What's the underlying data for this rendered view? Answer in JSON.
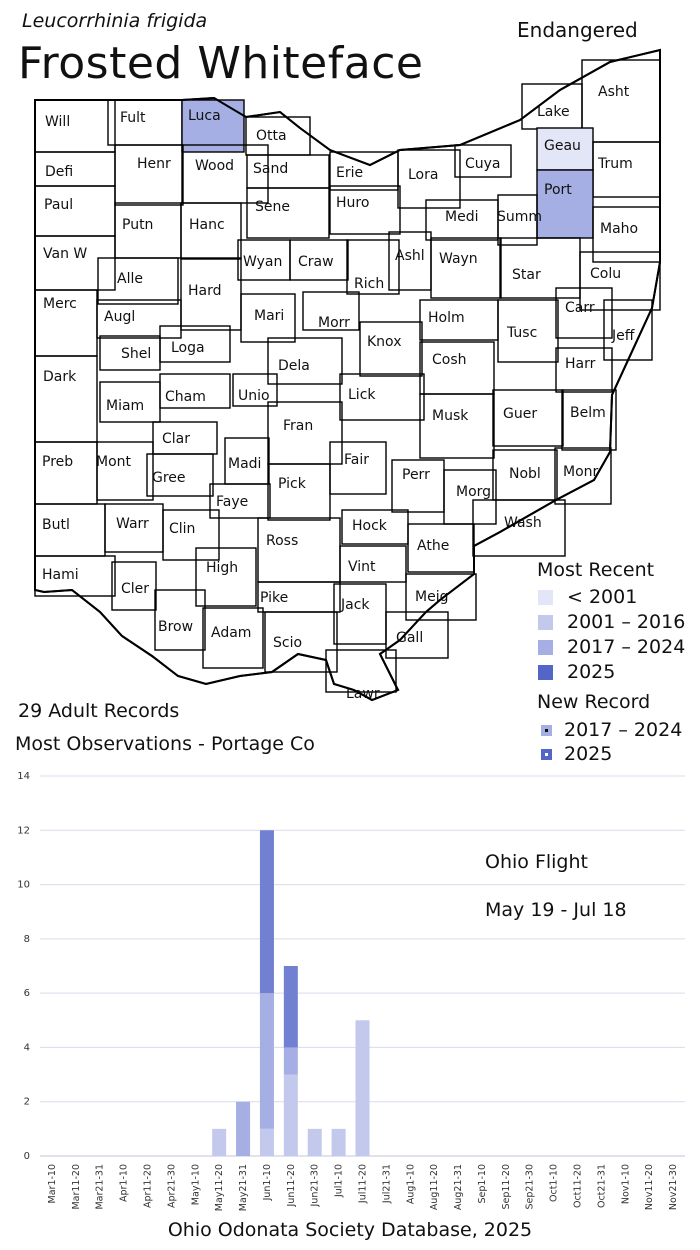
{
  "header": {
    "scientific_name": "Leucorrhinia frigida",
    "common_name": "Frosted Whiteface",
    "status": "Endangered"
  },
  "summary": {
    "records": "29 Adult Records",
    "most_observations": "Most Observations - Portage Co"
  },
  "legend": {
    "title": "Most Recent",
    "items": [
      {
        "label": "< 2001",
        "color": "#e3e6f6"
      },
      {
        "label": "2001 – 2016",
        "color": "#c3c9ec"
      },
      {
        "label": "2017 – 2024",
        "color": "#a6afe3"
      },
      {
        "label": "2025",
        "color": "#5465c8"
      }
    ],
    "new_record_title": "New Record",
    "new_record_items": [
      {
        "label": "2017 – 2024",
        "color": "#a6afe3"
      },
      {
        "label": "2025",
        "color": "#5465c8"
      }
    ]
  },
  "map": {
    "counties": [
      {
        "name": "Will",
        "fill": "none"
      },
      {
        "name": "Fult",
        "fill": "none"
      },
      {
        "name": "Luca",
        "fill": "2017 – 2024"
      },
      {
        "name": "Otta",
        "fill": "none"
      },
      {
        "name": "Lake",
        "fill": "none"
      },
      {
        "name": "Asht",
        "fill": "none"
      },
      {
        "name": "Geau",
        "fill": "< 2001"
      },
      {
        "name": "Defi",
        "fill": "none"
      },
      {
        "name": "Henr",
        "fill": "none"
      },
      {
        "name": "Wood",
        "fill": "none"
      },
      {
        "name": "Sand",
        "fill": "none"
      },
      {
        "name": "Erie",
        "fill": "none"
      },
      {
        "name": "Lora",
        "fill": "none"
      },
      {
        "name": "Cuya",
        "fill": "none"
      },
      {
        "name": "Trum",
        "fill": "none"
      },
      {
        "name": "Port",
        "fill": "2017 – 2024"
      },
      {
        "name": "Paul",
        "fill": "none"
      },
      {
        "name": "Putn",
        "fill": "none"
      },
      {
        "name": "Hanc",
        "fill": "none"
      },
      {
        "name": "Sene",
        "fill": "none"
      },
      {
        "name": "Huro",
        "fill": "none"
      },
      {
        "name": "Medi",
        "fill": "none"
      },
      {
        "name": "Summ",
        "fill": "none"
      },
      {
        "name": "Maho",
        "fill": "none"
      },
      {
        "name": "Van W",
        "fill": "none"
      },
      {
        "name": "Alle",
        "fill": "none"
      },
      {
        "name": "Wyan",
        "fill": "none"
      },
      {
        "name": "Craw",
        "fill": "none"
      },
      {
        "name": "Ashl",
        "fill": "none"
      },
      {
        "name": "Wayn",
        "fill": "none"
      },
      {
        "name": "Star",
        "fill": "none"
      },
      {
        "name": "Colu",
        "fill": "none"
      },
      {
        "name": "Hard",
        "fill": "none"
      },
      {
        "name": "Rich",
        "fill": "none"
      },
      {
        "name": "Merc",
        "fill": "none"
      },
      {
        "name": "Augl",
        "fill": "none"
      },
      {
        "name": "Mari",
        "fill": "none"
      },
      {
        "name": "Morr",
        "fill": "none"
      },
      {
        "name": "Holm",
        "fill": "none"
      },
      {
        "name": "Carr",
        "fill": "none"
      },
      {
        "name": "Tusc",
        "fill": "none"
      },
      {
        "name": "Jeff",
        "fill": "none"
      },
      {
        "name": "Shel",
        "fill": "none"
      },
      {
        "name": "Loga",
        "fill": "none"
      },
      {
        "name": "Knox",
        "fill": "none"
      },
      {
        "name": "Dela",
        "fill": "none"
      },
      {
        "name": "Cosh",
        "fill": "none"
      },
      {
        "name": "Harr",
        "fill": "none"
      },
      {
        "name": "Dark",
        "fill": "none"
      },
      {
        "name": "Cham",
        "fill": "none"
      },
      {
        "name": "Unio",
        "fill": "none"
      },
      {
        "name": "Lick",
        "fill": "none"
      },
      {
        "name": "Miam",
        "fill": "none"
      },
      {
        "name": "Musk",
        "fill": "none"
      },
      {
        "name": "Guer",
        "fill": "none"
      },
      {
        "name": "Belm",
        "fill": "none"
      },
      {
        "name": "Fran",
        "fill": "none"
      },
      {
        "name": "Clar",
        "fill": "none"
      },
      {
        "name": "Madi",
        "fill": "none"
      },
      {
        "name": "Fair",
        "fill": "none"
      },
      {
        "name": "Preb",
        "fill": "none"
      },
      {
        "name": "Mont",
        "fill": "none"
      },
      {
        "name": "Gree",
        "fill": "none"
      },
      {
        "name": "Perr",
        "fill": "none"
      },
      {
        "name": "Nobl",
        "fill": "none"
      },
      {
        "name": "Monr",
        "fill": "none"
      },
      {
        "name": "Pick",
        "fill": "none"
      },
      {
        "name": "Morg",
        "fill": "none"
      },
      {
        "name": "Faye",
        "fill": "none"
      },
      {
        "name": "Butl",
        "fill": "none"
      },
      {
        "name": "Warr",
        "fill": "none"
      },
      {
        "name": "Clin",
        "fill": "none"
      },
      {
        "name": "Wash",
        "fill": "none"
      },
      {
        "name": "Hock",
        "fill": "none"
      },
      {
        "name": "Ross",
        "fill": "none"
      },
      {
        "name": "Athe",
        "fill": "none"
      },
      {
        "name": "Hami",
        "fill": "none"
      },
      {
        "name": "High",
        "fill": "none"
      },
      {
        "name": "Vint",
        "fill": "none"
      },
      {
        "name": "Cler",
        "fill": "none"
      },
      {
        "name": "Pike",
        "fill": "none"
      },
      {
        "name": "Jack",
        "fill": "none"
      },
      {
        "name": "Meig",
        "fill": "none"
      },
      {
        "name": "Brow",
        "fill": "none"
      },
      {
        "name": "Adam",
        "fill": "none"
      },
      {
        "name": "Scio",
        "fill": "none"
      },
      {
        "name": "Gall",
        "fill": "none"
      },
      {
        "name": "Lawr",
        "fill": "none"
      }
    ]
  },
  "chart_data": {
    "type": "bar",
    "stacked": true,
    "categories": [
      "Mar1-10",
      "Mar11-20",
      "Mar21-31",
      "Apr1-10",
      "Apr11-20",
      "Apr21-30",
      "May1-10",
      "May11-20",
      "May21-31",
      "Jun1-10",
      "Jun11-20",
      "Jun21-30",
      "Jul1-10",
      "Jul11-20",
      "Jul21-31",
      "Aug1-10",
      "Aug11-20",
      "Aug21-31",
      "Sep1-10",
      "Sep11-20",
      "Sep21-30",
      "Oct1-10",
      "Oct11-20",
      "Oct21-31",
      "Nov1-10",
      "Nov11-20",
      "Nov21-30"
    ],
    "series": [
      {
        "color": "#c3c9ec",
        "values": [
          0,
          0,
          0,
          0,
          0,
          0,
          0,
          1,
          0,
          1,
          3,
          1,
          1,
          5,
          0,
          0,
          0,
          0,
          0,
          0,
          0,
          0,
          0,
          0,
          0,
          0,
          0
        ]
      },
      {
        "color": "#a6afe3",
        "values": [
          0,
          0,
          0,
          0,
          0,
          0,
          0,
          0,
          2,
          5,
          1,
          0,
          0,
          0,
          0,
          0,
          0,
          0,
          0,
          0,
          0,
          0,
          0,
          0,
          0,
          0,
          0
        ]
      },
      {
        "color": "#7180d0",
        "values": [
          0,
          0,
          0,
          0,
          0,
          0,
          0,
          0,
          0,
          6,
          3,
          0,
          0,
          0,
          0,
          0,
          0,
          0,
          0,
          0,
          0,
          0,
          0,
          0,
          0,
          0,
          0
        ]
      }
    ],
    "yticks": [
      0,
      2,
      4,
      6,
      8,
      10,
      12,
      14
    ],
    "ylim": [
      0,
      14
    ],
    "grid": true,
    "annotations": [
      "Ohio Flight",
      "May 19 - Jul 18"
    ]
  },
  "footer": {
    "source": "Ohio Odonata Society Database, 2025"
  }
}
